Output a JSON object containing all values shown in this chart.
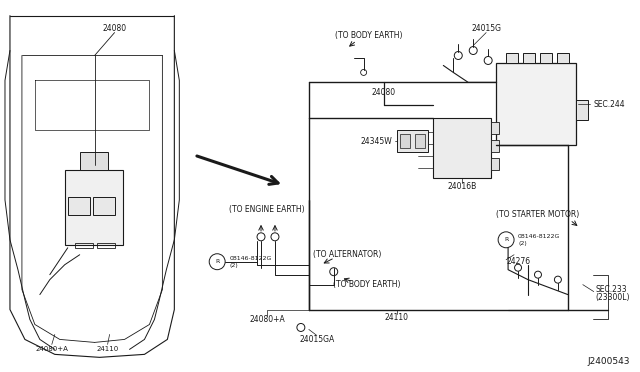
{
  "bg_color": "#ffffff",
  "line_color": "#1a1a1a",
  "lw": 0.7,
  "fs": 5.5,
  "labels": {
    "24080_top_left": "24080",
    "24080_right": "24080",
    "24015G": "24015G",
    "24345W": "24345W",
    "24016B": "24016B",
    "24110_left": "24110",
    "24110_right": "24110",
    "sec244": "SEC.244",
    "to_body_earth_top": "(TO BODY EARTH)",
    "to_engine_earth": "(TO ENGINE EARTH)",
    "to_alternator": "(TO ALTERNATOR)",
    "to_body_earth_bot": "(TO BODY EARTH)",
    "08146_left": "08146-8122G",
    "08146_left2": "(2)",
    "08146_right": "08146-8122G",
    "08146_right2": "(2)",
    "24080_a_left": "24080+A",
    "24080_a_right": "24080+A",
    "24015GA": "24015GA",
    "to_starter": "(TO STARTER MOTOR)",
    "24276": "24276",
    "sec233": "SEC.233",
    "sec233b": "(23300L)",
    "diagram_num": "J2400543"
  },
  "arrow_lw": 1.8,
  "note_color": "#1a1a1a"
}
